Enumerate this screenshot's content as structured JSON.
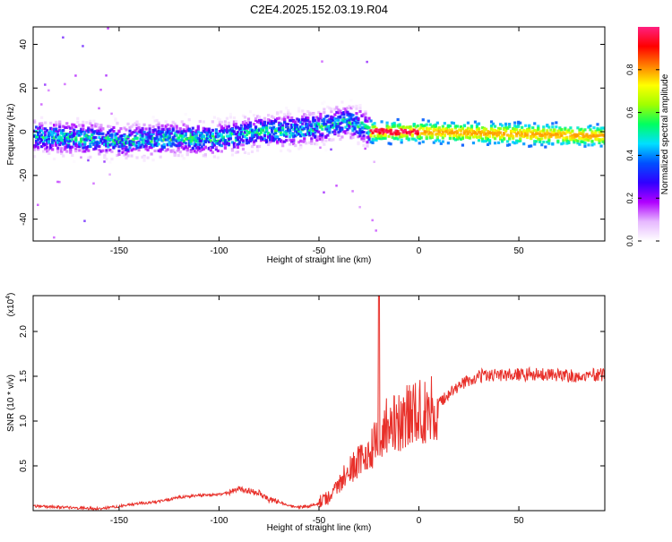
{
  "title": "C2E4.2025.152.03.19.R04",
  "colors": {
    "axis": "#000000",
    "snr_line": "#e8302a",
    "background": "#ffffff"
  },
  "chart_data": [
    {
      "type": "heatmap",
      "name": "spectrogram",
      "title": "C2E4.2025.152.03.19.R04",
      "xlabel": "Height of straight line (km)",
      "ylabel": "Frequency (Hz)",
      "xlim": [
        -193,
        93
      ],
      "ylim": [
        -50,
        48
      ],
      "xticks": [
        -150,
        -100,
        -50,
        0,
        50
      ],
      "yticks": [
        -40,
        -20,
        0,
        20,
        40
      ],
      "colorbar": {
        "label": "Normalized spectral amplitude",
        "range": [
          0.0,
          1.0
        ],
        "ticks": [
          0.0,
          0.2,
          0.4,
          0.6,
          0.8
        ],
        "tick_labels": [
          "0.0",
          "0.2",
          "0.4",
          "0.6",
          "0.8"
        ],
        "colors": [
          "#ffffff",
          "#e6b8ff",
          "#b000ff",
          "#3000ff",
          "#0050ff",
          "#00e0ff",
          "#00ff60",
          "#a0ff00",
          "#ffff00",
          "#ff8000",
          "#ff0000",
          "#ff2080"
        ]
      },
      "ridge": {
        "height_km": [
          -193,
          -150,
          -120,
          -100,
          -80,
          -60,
          -45,
          -38,
          -30,
          -25,
          0,
          50,
          93
        ],
        "frequency_hz": [
          -2,
          -4,
          -3,
          -3,
          0,
          1,
          3,
          5,
          3,
          0,
          0,
          -1,
          -2
        ]
      },
      "strong_band_km": [
        -25,
        93
      ],
      "peak_band_km": [
        -25,
        0
      ]
    },
    {
      "type": "line",
      "name": "snr",
      "xlabel": "Height of straight line (km)",
      "ylabel": "SNR (10 * v/v)",
      "scale_label": "(x10",
      "scale_exponent": "4",
      "scale_suffix": ")",
      "xlim": [
        -193,
        93
      ],
      "ylim": [
        0.0,
        2.4
      ],
      "xticks": [
        -150,
        -100,
        -50,
        0,
        50
      ],
      "yticks": [
        0.5,
        1.0,
        1.5,
        2.0
      ],
      "ytick_labels": [
        "0.5",
        "1.0",
        "1.5",
        "2.0"
      ],
      "x": [
        -193,
        -180,
        -170,
        -160,
        -150,
        -140,
        -130,
        -120,
        -110,
        -100,
        -95,
        -90,
        -85,
        -80,
        -75,
        -70,
        -65,
        -60,
        -55,
        -50,
        -45,
        -40,
        -35,
        -30,
        -25,
        -22,
        -20,
        -18,
        -15,
        -10,
        -5,
        0,
        5,
        10,
        15,
        20,
        25,
        30,
        35,
        40,
        50,
        60,
        70,
        80,
        93
      ],
      "y": [
        0.05,
        0.04,
        0.03,
        0.02,
        0.05,
        0.08,
        0.1,
        0.15,
        0.17,
        0.18,
        0.2,
        0.25,
        0.22,
        0.2,
        0.12,
        0.1,
        0.05,
        0.04,
        0.05,
        0.08,
        0.15,
        0.3,
        0.45,
        0.55,
        0.65,
        0.75,
        0.85,
        0.9,
        0.95,
        1.0,
        1.05,
        1.1,
        1.15,
        1.2,
        1.3,
        1.4,
        1.45,
        1.5,
        1.52,
        1.52,
        1.52,
        1.52,
        1.51,
        1.5,
        1.52
      ],
      "spike": {
        "x": -20,
        "y": 2.4
      }
    }
  ]
}
